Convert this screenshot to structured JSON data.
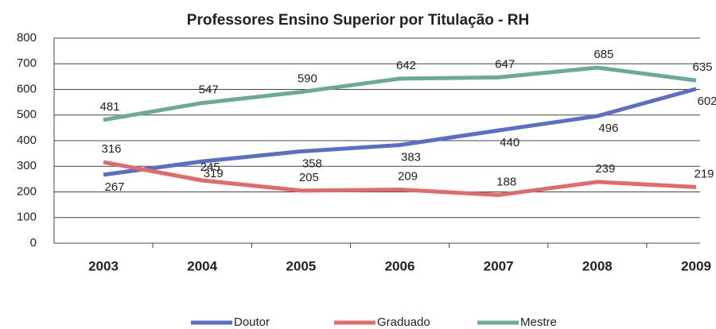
{
  "chart_data": {
    "type": "line",
    "title": "Professores Ensino Superior por Titulação - RH",
    "categories": [
      "2003",
      "2004",
      "2005",
      "2006",
      "2007",
      "2008",
      "2009"
    ],
    "series": [
      {
        "name": "Doutor",
        "color": "#5a6ec8",
        "values": [
          267,
          319,
          358,
          383,
          440,
          496,
          602
        ]
      },
      {
        "name": "Graduado",
        "color": "#e26a6a",
        "values": [
          316,
          245,
          205,
          209,
          188,
          239,
          219
        ]
      },
      {
        "name": "Mestre",
        "color": "#6aab96",
        "values": [
          481,
          547,
          590,
          642,
          647,
          685,
          635
        ]
      }
    ],
    "ylim": [
      0,
      800
    ],
    "yticks": [
      0,
      100,
      200,
      300,
      400,
      500,
      600,
      700,
      800
    ],
    "grid": true,
    "legend": "bottom"
  }
}
